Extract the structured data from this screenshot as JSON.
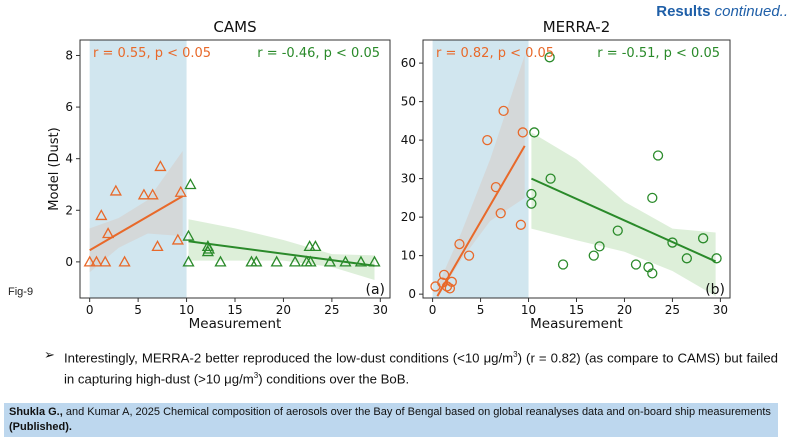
{
  "header": {
    "bold": "Results",
    "italic": "continued.."
  },
  "fig_label": "Fig-9",
  "bullet": {
    "arrow": "➢",
    "part1": "Interestingly, MERRA-2 better reproduced the low-dust conditions (<10 μg/m",
    "part2": ") (r = 0.82) (as compare to CAMS) but failed in capturing high-dust (>10 μg/m",
    "part3": ") conditions over the BoB.",
    "sup": "3"
  },
  "reference": {
    "authors_bold": "Shukla G.,",
    "text": " and Kumar A, 2025 Chemical composition of aerosols over the Bay of Bengal based on global reanalyses data and on-board ship measurements ",
    "status_bold": "(Published)."
  },
  "colors": {
    "low": "#e8692a",
    "high": "#2a8a2a",
    "shade_low": "#d1e6ef",
    "band_low": "#d5d5d5",
    "band_high": "#d4ebd0"
  },
  "chart_data": [
    {
      "type": "scatter",
      "title": "CAMS",
      "panel_label": "(a)",
      "xlabel": "Measurement",
      "ylabel": "Model (Dust)",
      "xlim": [
        -1,
        31
      ],
      "ylim": [
        -1.4,
        8.6
      ],
      "xticks": [
        0,
        5,
        10,
        15,
        20,
        25,
        30
      ],
      "yticks": [
        0,
        2,
        4,
        6,
        8
      ],
      "marker": "triangle",
      "shaded_region_x": [
        0,
        10
      ],
      "series": [
        {
          "name": "low",
          "annotation": "r = 0.55, p < 0.05",
          "points": [
            [
              0,
              0
            ],
            [
              0.7,
              0
            ],
            [
              1.6,
              0
            ],
            [
              3.6,
              0
            ],
            [
              1.2,
              1.8
            ],
            [
              1.9,
              1.1
            ],
            [
              2.7,
              2.75
            ],
            [
              5.6,
              2.6
            ],
            [
              6.5,
              2.6
            ],
            [
              7.3,
              3.7
            ],
            [
              9.4,
              2.7
            ],
            [
              9.1,
              0.85
            ],
            [
              7.0,
              0.6
            ]
          ],
          "fit": [
            [
              0,
              0.45
            ],
            [
              9.6,
              2.55
            ]
          ],
          "band_upper": [
            [
              0,
              1.3
            ],
            [
              3,
              1.7
            ],
            [
              6,
              2.4
            ],
            [
              9.6,
              4.3
            ]
          ],
          "band_lower": [
            [
              9.6,
              1.0
            ],
            [
              6,
              1.1
            ],
            [
              3,
              0.55
            ],
            [
              0,
              -0.4
            ]
          ]
        },
        {
          "name": "high",
          "annotation": "r = -0.46, p < 0.05",
          "points": [
            [
              10.4,
              3.0
            ],
            [
              10.2,
              1.0
            ],
            [
              10.2,
              0
            ],
            [
              12.2,
              0.6
            ],
            [
              12.2,
              0.4
            ],
            [
              12.3,
              0.5
            ],
            [
              13.5,
              0
            ],
            [
              16.7,
              0
            ],
            [
              17.2,
              0
            ],
            [
              19.3,
              0
            ],
            [
              21.2,
              0
            ],
            [
              22.4,
              0
            ],
            [
              22.8,
              0
            ],
            [
              22.7,
              0.6
            ],
            [
              23.3,
              0.6
            ],
            [
              24.8,
              0
            ],
            [
              26.4,
              0
            ],
            [
              28,
              0
            ],
            [
              29.4,
              0
            ]
          ],
          "fit": [
            [
              10.2,
              0.8
            ],
            [
              29.4,
              -0.15
            ]
          ],
          "band_upper": [
            [
              10.2,
              1.65
            ],
            [
              15,
              1.3
            ],
            [
              20,
              0.85
            ],
            [
              25,
              0.3
            ],
            [
              29.4,
              0.25
            ]
          ],
          "band_lower": [
            [
              29.4,
              -0.7
            ],
            [
              25,
              -0.2
            ],
            [
              20,
              0.05
            ],
            [
              15,
              0.05
            ],
            [
              10.2,
              0.05
            ]
          ]
        }
      ]
    },
    {
      "type": "scatter",
      "title": "MERRA-2",
      "panel_label": "(b)",
      "xlabel": "Measurement",
      "ylabel": "",
      "xlim": [
        -1,
        31
      ],
      "ylim": [
        -1,
        66
      ],
      "xticks": [
        0,
        5,
        10,
        15,
        20,
        25,
        30
      ],
      "yticks": [
        0,
        10,
        20,
        30,
        40,
        50,
        60
      ],
      "marker": "circle",
      "shaded_region_x": [
        0,
        10
      ],
      "series": [
        {
          "name": "low",
          "annotation": "r = 0.82, p < 0.05",
          "points": [
            [
              7.4,
              47.6
            ],
            [
              5.7,
              40
            ],
            [
              9.4,
              42
            ],
            [
              6.6,
              27.8
            ],
            [
              7.1,
              21
            ],
            [
              9.2,
              18
            ],
            [
              2.8,
              13
            ],
            [
              3.8,
              10
            ],
            [
              1.2,
              5
            ],
            [
              1.0,
              3
            ],
            [
              0.3,
              2
            ],
            [
              1.5,
              2
            ],
            [
              2.0,
              3.2
            ],
            [
              1.8,
              1.5
            ]
          ],
          "fit": [
            [
              0.5,
              -0.5
            ],
            [
              9.6,
              38.5
            ]
          ],
          "band_upper": [
            [
              0.5,
              2
            ],
            [
              3,
              16
            ],
            [
              6,
              35
            ],
            [
              9.6,
              62
            ]
          ],
          "band_lower": [
            [
              9.6,
              25
            ],
            [
              6,
              19
            ],
            [
              3,
              9
            ],
            [
              0.5,
              -2
            ]
          ]
        },
        {
          "name": "high",
          "annotation": "r = -0.51, p < 0.05",
          "points": [
            [
              10.6,
              42
            ],
            [
              12.2,
              61.5
            ],
            [
              23.5,
              36
            ],
            [
              12.3,
              30
            ],
            [
              10.3,
              26
            ],
            [
              10.3,
              23.5
            ],
            [
              22.9,
              25
            ],
            [
              19.3,
              16.5
            ],
            [
              28.2,
              14.5
            ],
            [
              25,
              13.4
            ],
            [
              17.4,
              12.4
            ],
            [
              16.8,
              10
            ],
            [
              26.5,
              9.3
            ],
            [
              29.6,
              9.3
            ],
            [
              13.6,
              7.7
            ],
            [
              21.2,
              7.7
            ],
            [
              22.5,
              7
            ],
            [
              22.9,
              5.4
            ]
          ],
          "fit": [
            [
              10.3,
              30
            ],
            [
              29.5,
              8.5
            ]
          ],
          "band_upper": [
            [
              10.3,
              42
            ],
            [
              15,
              35
            ],
            [
              20,
              24
            ],
            [
              25,
              17
            ],
            [
              29.5,
              16
            ]
          ],
          "band_lower": [
            [
              29.5,
              -0.5
            ],
            [
              25,
              6
            ],
            [
              20,
              11
            ],
            [
              15,
              14
            ],
            [
              10.3,
              17
            ]
          ]
        }
      ]
    }
  ]
}
